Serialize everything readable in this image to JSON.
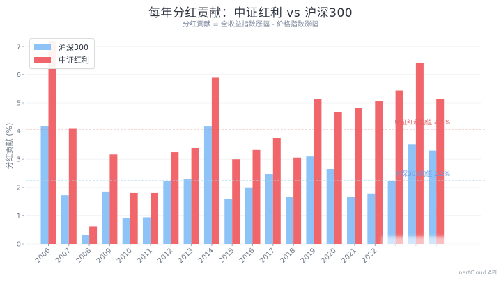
{
  "chart_data": {
    "type": "bar",
    "title": "每年分红贡献：中证红利 vs 沪深300",
    "subtitle": "分红贡献 = 全收益指数涨幅 - 价格指数涨幅",
    "xlabel": "",
    "ylabel": "分红贡献 (%)",
    "ylim": [
      0,
      7.1
    ],
    "yticks": [
      0,
      1,
      2,
      3,
      4,
      5,
      6,
      7
    ],
    "grid": true,
    "legend_position": "top-left",
    "categories": [
      "2006",
      "2007",
      "2008",
      "2009",
      "2010",
      "2011",
      "2012",
      "2013",
      "2014",
      "2015",
      "2016",
      "2017",
      "2018",
      "2019",
      "2020",
      "2021",
      "2022",
      "",
      "",
      ""
    ],
    "series": [
      {
        "name": "沪深300",
        "color": "#8ec3f8",
        "values": [
          4.18,
          1.72,
          0.32,
          1.85,
          0.92,
          0.95,
          2.24,
          2.29,
          4.16,
          1.6,
          2.0,
          2.47,
          1.65,
          3.1,
          2.66,
          1.65,
          1.78,
          2.22,
          3.54,
          3.31
        ]
      },
      {
        "name": "中证红利",
        "color": "#f0666b",
        "values": [
          7.2,
          4.1,
          0.63,
          3.17,
          1.8,
          1.8,
          3.25,
          3.4,
          5.9,
          3.0,
          3.33,
          3.75,
          3.06,
          5.13,
          4.68,
          4.81,
          5.07,
          5.43,
          6.43,
          5.14
        ]
      }
    ],
    "reference_lines": [
      {
        "label": "中证红利均值 4.1%",
        "value": 4.07,
        "color": "#e06666",
        "style": "dashed"
      },
      {
        "label": "沪深300均值 2.2%",
        "value": 2.24,
        "color": "#a9d3f0",
        "style": "dashed"
      }
    ]
  },
  "watermark": "nartCloud API"
}
